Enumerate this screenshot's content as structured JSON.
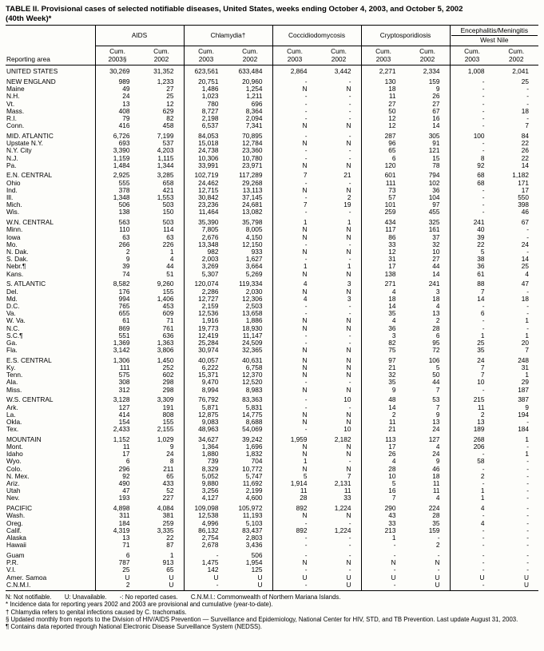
{
  "page": {
    "title_line1": "TABLE II. Provisional cases of selected notifiable diseases, United States, weeks ending October 4, 2003, and October 5, 2002",
    "title_line2": "(40th Week)*"
  },
  "table": {
    "reporting_area_label": "Reporting area",
    "groups": [
      {
        "line1": "AIDS",
        "line2": ""
      },
      {
        "line1": "Chlamydia†",
        "line2": ""
      },
      {
        "line1": "Coccidiodomycosis",
        "line2": ""
      },
      {
        "line1": "Cryptosporidiosis",
        "line2": ""
      },
      {
        "line1": "Encephalitis/Meningitis",
        "line2": "West Nile"
      }
    ],
    "subheaders": [
      {
        "l1": "Cum.",
        "l2": "2003§"
      },
      {
        "l1": "Cum.",
        "l2": "2002"
      },
      {
        "l1": "Cum.",
        "l2": "2003"
      },
      {
        "l1": "Cum.",
        "l2": "2002"
      },
      {
        "l1": "Cum.",
        "l2": "2003"
      },
      {
        "l1": "Cum.",
        "l2": "2002"
      },
      {
        "l1": "Cum.",
        "l2": "2003"
      },
      {
        "l1": "Cum.",
        "l2": "2002"
      },
      {
        "l1": "Cum.",
        "l2": "2003"
      },
      {
        "l1": "Cum.",
        "l2": "2002"
      }
    ],
    "rows": [
      {
        "area": "UNITED STATES",
        "gap": true,
        "values": [
          "30,269",
          "31,352",
          "623,561",
          "633,484",
          "2,864",
          "3,442",
          "2,271",
          "2,334",
          "1,008",
          "2,041"
        ]
      },
      {
        "area": "NEW ENGLAND",
        "gap": true,
        "values": [
          "989",
          "1,233",
          "20,751",
          "20,960",
          "-",
          "-",
          "130",
          "159",
          "-",
          "25"
        ]
      },
      {
        "area": "Maine",
        "gap": false,
        "values": [
          "49",
          "27",
          "1,486",
          "1,254",
          "N",
          "N",
          "18",
          "9",
          "-",
          "-"
        ]
      },
      {
        "area": "N.H.",
        "gap": false,
        "values": [
          "24",
          "25",
          "1,023",
          "1,211",
          "-",
          "-",
          "11",
          "26",
          "-",
          "-"
        ]
      },
      {
        "area": "Vt.",
        "gap": false,
        "values": [
          "13",
          "12",
          "780",
          "696",
          "-",
          "-",
          "27",
          "27",
          "-",
          "-"
        ]
      },
      {
        "area": "Mass.",
        "gap": false,
        "values": [
          "408",
          "629",
          "8,727",
          "8,364",
          "-",
          "-",
          "50",
          "67",
          "-",
          "18"
        ]
      },
      {
        "area": "R.I.",
        "gap": false,
        "values": [
          "79",
          "82",
          "2,198",
          "2,094",
          "-",
          "-",
          "12",
          "16",
          "-",
          "-"
        ]
      },
      {
        "area": "Conn.",
        "gap": false,
        "values": [
          "416",
          "458",
          "6,537",
          "7,341",
          "N",
          "N",
          "12",
          "14",
          "-",
          "7"
        ]
      },
      {
        "area": "MID. ATLANTIC",
        "gap": true,
        "values": [
          "6,726",
          "7,199",
          "84,053",
          "70,895",
          "-",
          "-",
          "287",
          "305",
          "100",
          "84"
        ]
      },
      {
        "area": "Upstate N.Y.",
        "gap": false,
        "values": [
          "693",
          "537",
          "15,018",
          "12,784",
          "N",
          "N",
          "96",
          "91",
          "-",
          "22"
        ]
      },
      {
        "area": "N.Y. City",
        "gap": false,
        "values": [
          "3,390",
          "4,203",
          "24,738",
          "23,360",
          "-",
          "-",
          "65",
          "121",
          "-",
          "26"
        ]
      },
      {
        "area": "N.J.",
        "gap": false,
        "values": [
          "1,159",
          "1,115",
          "10,306",
          "10,780",
          "-",
          "-",
          "6",
          "15",
          "8",
          "22"
        ]
      },
      {
        "area": "Pa.",
        "gap": false,
        "values": [
          "1,484",
          "1,344",
          "33,991",
          "23,971",
          "N",
          "N",
          "120",
          "78",
          "92",
          "14"
        ]
      },
      {
        "area": "E.N. CENTRAL",
        "gap": true,
        "values": [
          "2,925",
          "3,285",
          "102,719",
          "117,289",
          "7",
          "21",
          "601",
          "794",
          "68",
          "1,182"
        ]
      },
      {
        "area": "Ohio",
        "gap": false,
        "values": [
          "555",
          "658",
          "24,462",
          "29,268",
          "-",
          "-",
          "111",
          "102",
          "68",
          "171"
        ]
      },
      {
        "area": "Ind.",
        "gap": false,
        "values": [
          "378",
          "421",
          "12,715",
          "13,113",
          "N",
          "N",
          "73",
          "36",
          "-",
          "17"
        ]
      },
      {
        "area": "Ill.",
        "gap": false,
        "values": [
          "1,348",
          "1,553",
          "30,842",
          "37,145",
          "-",
          "2",
          "57",
          "104",
          "-",
          "550"
        ]
      },
      {
        "area": "Mich.",
        "gap": false,
        "values": [
          "506",
          "503",
          "23,236",
          "24,681",
          "7",
          "19",
          "101",
          "97",
          "-",
          "398"
        ]
      },
      {
        "area": "Wis.",
        "gap": false,
        "values": [
          "138",
          "150",
          "11,464",
          "13,082",
          "-",
          "-",
          "259",
          "455",
          "-",
          "46"
        ]
      },
      {
        "area": "W.N. CENTRAL",
        "gap": true,
        "values": [
          "563",
          "503",
          "35,390",
          "35,798",
          "1",
          "1",
          "434",
          "325",
          "241",
          "67"
        ]
      },
      {
        "area": "Minn.",
        "gap": false,
        "values": [
          "110",
          "114",
          "7,805",
          "8,005",
          "N",
          "N",
          "117",
          "161",
          "40",
          "-"
        ]
      },
      {
        "area": "Iowa",
        "gap": false,
        "values": [
          "63",
          "63",
          "2,676",
          "4,150",
          "N",
          "N",
          "86",
          "37",
          "39",
          "-"
        ]
      },
      {
        "area": "Mo.",
        "gap": false,
        "values": [
          "266",
          "226",
          "13,348",
          "12,150",
          "-",
          "-",
          "33",
          "32",
          "22",
          "24"
        ]
      },
      {
        "area": "N. Dak.",
        "gap": false,
        "values": [
          "2",
          "1",
          "982",
          "933",
          "N",
          "N",
          "12",
          "10",
          "5",
          "-"
        ]
      },
      {
        "area": "S. Dak.",
        "gap": false,
        "values": [
          "9",
          "4",
          "2,003",
          "1,627",
          "-",
          "-",
          "31",
          "27",
          "38",
          "14"
        ]
      },
      {
        "area": "Nebr.¶",
        "gap": false,
        "values": [
          "39",
          "44",
          "3,269",
          "3,664",
          "1",
          "1",
          "17",
          "44",
          "36",
          "25"
        ]
      },
      {
        "area": "Kans.",
        "gap": false,
        "values": [
          "74",
          "51",
          "5,307",
          "5,269",
          "N",
          "N",
          "138",
          "14",
          "61",
          "4"
        ]
      },
      {
        "area": "S. ATLANTIC",
        "gap": true,
        "values": [
          "8,582",
          "9,260",
          "120,074",
          "119,334",
          "4",
          "3",
          "271",
          "241",
          "88",
          "47"
        ]
      },
      {
        "area": "Del.",
        "gap": false,
        "values": [
          "176",
          "155",
          "2,286",
          "2,030",
          "N",
          "N",
          "4",
          "3",
          "7",
          "-"
        ]
      },
      {
        "area": "Md.",
        "gap": false,
        "values": [
          "994",
          "1,406",
          "12,727",
          "12,306",
          "4",
          "3",
          "18",
          "18",
          "14",
          "18"
        ]
      },
      {
        "area": "D.C.",
        "gap": false,
        "values": [
          "765",
          "453",
          "2,159",
          "2,503",
          "-",
          "-",
          "14",
          "4",
          "-",
          "-"
        ]
      },
      {
        "area": "Va.",
        "gap": false,
        "values": [
          "655",
          "609",
          "12,536",
          "13,658",
          "-",
          "-",
          "35",
          "13",
          "6",
          "-"
        ]
      },
      {
        "area": "W. Va.",
        "gap": false,
        "values": [
          "61",
          "71",
          "1,916",
          "1,886",
          "N",
          "N",
          "4",
          "2",
          "-",
          "1"
        ]
      },
      {
        "area": "N.C.",
        "gap": false,
        "values": [
          "869",
          "761",
          "19,773",
          "18,930",
          "N",
          "N",
          "36",
          "28",
          "-",
          "-"
        ]
      },
      {
        "area": "S.C.¶",
        "gap": false,
        "values": [
          "551",
          "636",
          "12,419",
          "11,147",
          "-",
          "-",
          "3",
          "6",
          "1",
          "1"
        ]
      },
      {
        "area": "Ga.",
        "gap": false,
        "values": [
          "1,369",
          "1,363",
          "25,284",
          "24,509",
          "-",
          "-",
          "82",
          "95",
          "25",
          "20"
        ]
      },
      {
        "area": "Fla.",
        "gap": false,
        "values": [
          "3,142",
          "3,806",
          "30,974",
          "32,365",
          "N",
          "N",
          "75",
          "72",
          "35",
          "7"
        ]
      },
      {
        "area": "E.S. CENTRAL",
        "gap": true,
        "values": [
          "1,306",
          "1,450",
          "40,057",
          "40,631",
          "N",
          "N",
          "97",
          "106",
          "24",
          "248"
        ]
      },
      {
        "area": "Ky.",
        "gap": false,
        "values": [
          "111",
          "252",
          "6,222",
          "6,758",
          "N",
          "N",
          "21",
          "5",
          "7",
          "31"
        ]
      },
      {
        "area": "Tenn.",
        "gap": false,
        "values": [
          "575",
          "602",
          "15,371",
          "12,370",
          "N",
          "N",
          "32",
          "50",
          "7",
          "1"
        ]
      },
      {
        "area": "Ala.",
        "gap": false,
        "values": [
          "308",
          "298",
          "9,470",
          "12,520",
          "-",
          "-",
          "35",
          "44",
          "10",
          "29"
        ]
      },
      {
        "area": "Miss.",
        "gap": false,
        "values": [
          "312",
          "298",
          "8,994",
          "8,983",
          "N",
          "N",
          "9",
          "7",
          "-",
          "187"
        ]
      },
      {
        "area": "W.S. CENTRAL",
        "gap": true,
        "values": [
          "3,128",
          "3,309",
          "76,792",
          "83,363",
          "-",
          "10",
          "48",
          "53",
          "215",
          "387"
        ]
      },
      {
        "area": "Ark.",
        "gap": false,
        "values": [
          "127",
          "191",
          "5,871",
          "5,831",
          "-",
          "-",
          "14",
          "7",
          "11",
          "9"
        ]
      },
      {
        "area": "La.",
        "gap": false,
        "values": [
          "414",
          "808",
          "12,875",
          "14,775",
          "N",
          "N",
          "2",
          "9",
          "2",
          "194"
        ]
      },
      {
        "area": "Okla.",
        "gap": false,
        "values": [
          "154",
          "155",
          "9,083",
          "8,688",
          "N",
          "N",
          "11",
          "13",
          "13",
          "-"
        ]
      },
      {
        "area": "Tex.",
        "gap": false,
        "values": [
          "2,433",
          "2,155",
          "48,963",
          "54,069",
          "-",
          "10",
          "21",
          "24",
          "189",
          "184"
        ]
      },
      {
        "area": "MOUNTAIN",
        "gap": true,
        "values": [
          "1,152",
          "1,029",
          "34,627",
          "39,242",
          "1,959",
          "2,182",
          "113",
          "127",
          "268",
          "1"
        ]
      },
      {
        "area": "Mont.",
        "gap": false,
        "values": [
          "11",
          "9",
          "1,364",
          "1,696",
          "N",
          "N",
          "17",
          "4",
          "206",
          "-"
        ]
      },
      {
        "area": "Idaho",
        "gap": false,
        "values": [
          "17",
          "24",
          "1,880",
          "1,832",
          "N",
          "N",
          "26",
          "24",
          "-",
          "1"
        ]
      },
      {
        "area": "Wyo.",
        "gap": false,
        "values": [
          "6",
          "8",
          "739",
          "704",
          "1",
          "-",
          "4",
          "9",
          "58",
          "-"
        ]
      },
      {
        "area": "Colo.",
        "gap": false,
        "values": [
          "296",
          "211",
          "8,329",
          "10,772",
          "N",
          "N",
          "28",
          "46",
          "-",
          "-"
        ]
      },
      {
        "area": "N. Mex.",
        "gap": false,
        "values": [
          "92",
          "65",
          "5,052",
          "5,747",
          "5",
          "7",
          "10",
          "18",
          "2",
          "-"
        ]
      },
      {
        "area": "Ariz.",
        "gap": false,
        "values": [
          "490",
          "433",
          "9,880",
          "11,692",
          "1,914",
          "2,131",
          "5",
          "11",
          "-",
          "-"
        ]
      },
      {
        "area": "Utah",
        "gap": false,
        "values": [
          "47",
          "52",
          "3,256",
          "2,199",
          "11",
          "11",
          "16",
          "11",
          "1",
          "-"
        ]
      },
      {
        "area": "Nev.",
        "gap": false,
        "values": [
          "193",
          "227",
          "4,127",
          "4,600",
          "28",
          "33",
          "7",
          "4",
          "1",
          "-"
        ]
      },
      {
        "area": "PACIFIC",
        "gap": true,
        "values": [
          "4,898",
          "4,084",
          "109,098",
          "105,972",
          "892",
          "1,224",
          "290",
          "224",
          "4",
          "-"
        ]
      },
      {
        "area": "Wash.",
        "gap": false,
        "values": [
          "311",
          "381",
          "12,538",
          "11,193",
          "N",
          "N",
          "43",
          "28",
          "-",
          "-"
        ]
      },
      {
        "area": "Oreg.",
        "gap": false,
        "values": [
          "184",
          "259",
          "4,996",
          "5,103",
          "-",
          "-",
          "33",
          "35",
          "4",
          "-"
        ]
      },
      {
        "area": "Calif.",
        "gap": false,
        "values": [
          "4,319",
          "3,335",
          "86,132",
          "83,437",
          "892",
          "1,224",
          "213",
          "159",
          "-",
          "-"
        ]
      },
      {
        "area": "Alaska",
        "gap": false,
        "values": [
          "13",
          "22",
          "2,754",
          "2,803",
          "-",
          "-",
          "1",
          "-",
          "-",
          "-"
        ]
      },
      {
        "area": "Hawaii",
        "gap": false,
        "values": [
          "71",
          "87",
          "2,678",
          "3,436",
          "-",
          "-",
          "-",
          "2",
          "-",
          "-"
        ]
      },
      {
        "area": "Guam",
        "gap": true,
        "values": [
          "6",
          "1",
          "-",
          "506",
          "-",
          "-",
          "-",
          "-",
          "-",
          "-"
        ]
      },
      {
        "area": "P.R.",
        "gap": false,
        "values": [
          "787",
          "913",
          "1,475",
          "1,954",
          "N",
          "N",
          "N",
          "N",
          "-",
          "-"
        ]
      },
      {
        "area": "V.I.",
        "gap": false,
        "values": [
          "25",
          "65",
          "142",
          "125",
          "-",
          "-",
          "-",
          "-",
          "-",
          "-"
        ]
      },
      {
        "area": "Amer. Samoa",
        "gap": false,
        "values": [
          "U",
          "U",
          "U",
          "U",
          "U",
          "U",
          "U",
          "U",
          "U",
          "U"
        ]
      },
      {
        "area": "C.N.M.I.",
        "gap": false,
        "values": [
          "2",
          "U",
          "-",
          "U",
          "-",
          "U",
          "-",
          "U",
          "-",
          "U"
        ]
      }
    ]
  },
  "footnotes": {
    "legend": [
      "N: Not notifiable.",
      "U: Unavailable.",
      "-: No reported cases.",
      "C.N.M.I.: Commonwealth of Northern Mariana Islands."
    ],
    "lines": [
      "* Incidence data for reporting years 2002 and 2003 are provisional and cumulative (year-to-date).",
      "† Chlamydia refers to genital infections caused by C. trachomatis.",
      "§ Updated monthly from reports to the Division of HIV/AIDS Prevention — Surveillance and Epidemiology, National Center for HIV, STD, and TB Prevention. Last update August 31, 2003.",
      "¶ Contains data reported through National Electronic Disease Surveillance System (NEDSS)."
    ]
  }
}
